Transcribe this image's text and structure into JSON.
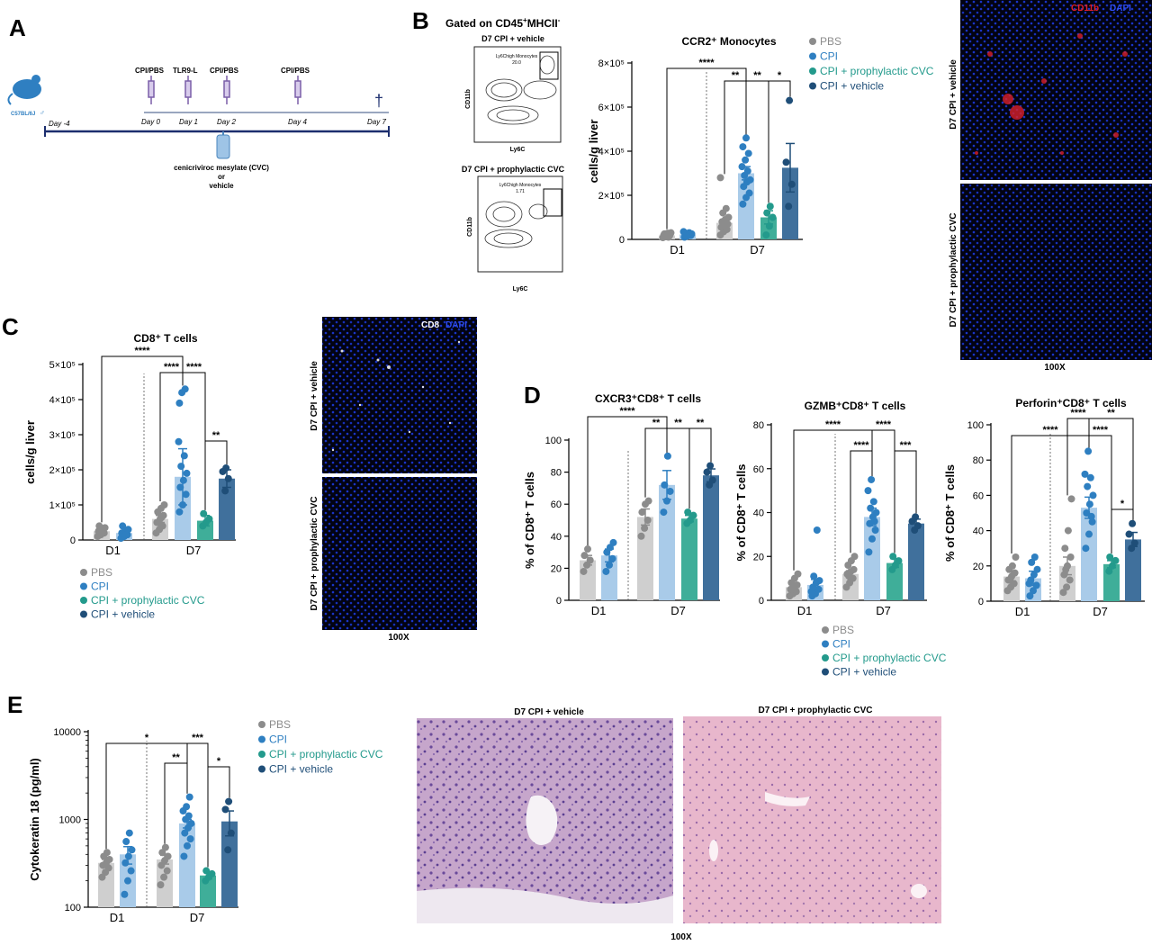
{
  "colors": {
    "pbs": "#8c8c8c",
    "pbs_bar": "#cfcfcf",
    "cpi": "#2e7fc1",
    "cpi_bar": "#a9cbe9",
    "cvc": "#239a8c",
    "cvc_bar": "#3fae99",
    "veh": "#1f4e78",
    "veh_bar": "#40709c",
    "cd11b": "#e0202a",
    "dapi": "#1e3ee6"
  },
  "panel_letters": [
    "A",
    "B",
    "C",
    "D",
    "E"
  ],
  "panel_a": {
    "mouse": "C57BL/6J",
    "sex": "♂",
    "labels_top": [
      "CPI/PBS",
      "TLR9-L",
      "CPI/PBS",
      "CPI/PBS"
    ],
    "days": [
      "Day -4",
      "Day 0",
      "Day 1",
      "Day 2",
      "Day 4",
      "Day 7"
    ],
    "treatment_line1": "cenicriviroc mesylate (CVC)",
    "treatment_line2": "or",
    "treatment_line3": "vehicle",
    "cross": "†"
  },
  "panel_b": {
    "gate_prefix": "Gated on CD45",
    "gate_sup1": "+",
    "gate_mid": "MHCII",
    "gate_sup2": "-",
    "flow1": {
      "title": "D7 CPI + vehicle",
      "gate": "Ly6Chigh Monocytes",
      "value": "20.0",
      "ylabel": "CD11b",
      "xlabel": "Ly6C"
    },
    "flow2": {
      "title": "D7 CPI + prophylactic CVC",
      "gate": "Ly6Chigh Monocytes",
      "value": "1.71",
      "ylabel": "CD11b",
      "xlabel": "Ly6C"
    },
    "micro": {
      "label1": "CD11b",
      "label2": "DAPI",
      "top": "D7 CPI + vehicle",
      "bottom": "D7 CPI + prophylactic CVC",
      "mag": "100X"
    }
  },
  "panel_c": {
    "micro": {
      "label1": "CD8",
      "label2": "DAPI",
      "top": "D7 CPI + vehicle",
      "bottom": "D7 CPI + prophylactic CVC",
      "mag": "100X"
    }
  },
  "panel_e": {
    "img1_title": "D7 CPI + vehicle",
    "img2_title": "D7 CPI + prophylactic CVC",
    "mag": "100X"
  },
  "legend": [
    "PBS",
    "CPI",
    "CPI + prophylactic CVC",
    "CPI + vehicle"
  ],
  "chart_data": [
    {
      "id": "ccr2",
      "type": "bar",
      "title": "CCR2⁺ Monocytes",
      "ylabel": "cells/g liver",
      "ylim": [
        0,
        800000
      ],
      "yticks": [
        0,
        200000,
        400000,
        600000,
        800000
      ],
      "ytick_labels": [
        "0",
        "2×10⁵",
        "4×10⁵",
        "6×10⁵",
        "8×10⁵"
      ],
      "groups": [
        "D1",
        "D7"
      ],
      "series": [
        {
          "name": "PBS",
          "D1": {
            "mean": 18000,
            "err": 4000,
            "points": [
              8000,
              12000,
              15000,
              18000,
              20000,
              22000,
              25000,
              28000,
              30000,
              15000,
              10000
            ]
          },
          "D7": {
            "mean": 75000,
            "err": 15000,
            "points": [
              20000,
              35000,
              45000,
              55000,
              60000,
              70000,
              80000,
              90000,
              100000,
              120000,
              140000,
              280000
            ]
          }
        },
        {
          "name": "CPI",
          "D1": {
            "mean": 22000,
            "err": 4000,
            "points": [
              10000,
              15000,
              18000,
              20000,
              22000,
              25000,
              28000,
              30000,
              35000,
              15000
            ]
          },
          "D7": {
            "mean": 300000,
            "err": 30000,
            "points": [
              160000,
              190000,
              210000,
              240000,
              260000,
              270000,
              290000,
              310000,
              330000,
              360000,
              390000,
              420000,
              460000
            ]
          }
        },
        {
          "name": "CPI + prophylactic CVC",
          "D7": {
            "mean": 100000,
            "err": 30000,
            "points": [
              20000,
              60000,
              100000,
              120000,
              150000
            ]
          }
        },
        {
          "name": "CPI + vehicle",
          "D7": {
            "mean": 325000,
            "err": 110000,
            "points": [
              150000,
              250000,
              350000,
              630000
            ]
          }
        }
      ],
      "sig": [
        "****",
        "**",
        "**",
        "*"
      ]
    },
    {
      "id": "cd8",
      "type": "bar",
      "title": "CD8⁺ T cells",
      "ylabel": "cells/g liver",
      "ylim": [
        0,
        500000
      ],
      "yticks": [
        0,
        100000,
        200000,
        300000,
        400000,
        500000
      ],
      "ytick_labels": [
        "0",
        "1×10⁵",
        "2×10⁵",
        "3×10⁵",
        "4×10⁵",
        "5×10⁵"
      ],
      "groups": [
        "D1",
        "D7"
      ],
      "series": [
        {
          "name": "PBS",
          "D1": {
            "mean": 25000,
            "err": 5000,
            "points": [
              10000,
              15000,
              20000,
              25000,
              30000,
              35000,
              40000,
              20000
            ]
          },
          "D7": {
            "mean": 60000,
            "err": 10000,
            "points": [
              20000,
              30000,
              40000,
              50000,
              60000,
              70000,
              80000,
              90000,
              100000,
              50000,
              65000
            ]
          }
        },
        {
          "name": "CPI",
          "D1": {
            "mean": 20000,
            "err": 5000,
            "points": [
              5000,
              10000,
              15000,
              20000,
              25000,
              30000,
              40000,
              15000
            ]
          },
          "D7": {
            "mean": 180000,
            "err": 80000,
            "points": [
              80000,
              100000,
              130000,
              150000,
              170000,
              190000,
              210000,
              240000,
              280000,
              420000,
              430000,
              390000
            ]
          }
        },
        {
          "name": "CPI + prophylactic CVC",
          "D7": {
            "mean": 55000,
            "err": 15000,
            "points": [
              40000,
              50000,
              60000,
              75000
            ]
          }
        },
        {
          "name": "CPI + vehicle",
          "D7": {
            "mean": 175000,
            "err": 25000,
            "points": [
              140000,
              175000,
              195000,
              205000
            ]
          }
        }
      ],
      "sig": [
        "****",
        "****",
        "****",
        "**"
      ]
    },
    {
      "id": "cxcr3",
      "type": "bar",
      "title": "CXCR3⁺CD8⁺ T cells",
      "ylabel": "% of CD8⁺ T cells",
      "ylim": [
        0,
        100
      ],
      "yticks": [
        0,
        20,
        40,
        60,
        80,
        100
      ],
      "ytick_labels": [
        "0",
        "20",
        "40",
        "60",
        "80",
        "100"
      ],
      "groups": [
        "D1",
        "D7"
      ],
      "series": [
        {
          "name": "PBS",
          "D1": {
            "mean": 25,
            "err": 3,
            "points": [
              18,
              22,
              25,
              28,
              32
            ]
          },
          "D7": {
            "mean": 52,
            "err": 5,
            "points": [
              40,
              45,
              50,
              55,
              60,
              62
            ]
          }
        },
        {
          "name": "CPI",
          "D1": {
            "mean": 28,
            "err": 4,
            "points": [
              18,
              22,
              26,
              30,
              33,
              36
            ]
          },
          "D7": {
            "mean": 72,
            "err": 9,
            "points": [
              55,
              62,
              68,
              72,
              90
            ]
          }
        },
        {
          "name": "CPI + prophylactic CVC",
          "D7": {
            "mean": 51,
            "err": 2,
            "points": [
              48,
              50,
              53,
              55
            ]
          }
        },
        {
          "name": "CPI + vehicle",
          "D7": {
            "mean": 78,
            "err": 4,
            "points": [
              72,
              75,
              80,
              84
            ]
          }
        }
      ],
      "sig": [
        "****",
        "**",
        "**",
        "**"
      ]
    },
    {
      "id": "gzmb",
      "type": "bar",
      "title": "GZMB⁺CD8⁺ T cells",
      "ylabel": "% of CD8⁺ T cells",
      "ylim": [
        0,
        80
      ],
      "yticks": [
        0,
        20,
        40,
        60,
        80
      ],
      "ytick_labels": [
        "0",
        "20",
        "40",
        "60",
        "80"
      ],
      "groups": [
        "D1",
        "D7"
      ],
      "series": [
        {
          "name": "PBS",
          "D1": {
            "mean": 6,
            "err": 1.5,
            "points": [
              2,
              3,
              4,
              5,
              6,
              7,
              8,
              10,
              12,
              5
            ]
          },
          "D7": {
            "mean": 12,
            "err": 1.5,
            "points": [
              6,
              8,
              10,
              12,
              13,
              14,
              16,
              18,
              20,
              11
            ]
          }
        },
        {
          "name": "CPI",
          "D1": {
            "mean": 7,
            "err": 2.5,
            "points": [
              2,
              3,
              5,
              6,
              8,
              9,
              11,
              32,
              4
            ]
          },
          "D7": {
            "mean": 38,
            "err": 4,
            "points": [
              22,
              28,
              32,
              35,
              38,
              40,
              42,
              45,
              50,
              55,
              36
            ]
          }
        },
        {
          "name": "CPI + prophylactic CVC",
          "D7": {
            "mean": 17,
            "err": 2,
            "points": [
              14,
              16,
              18,
              20
            ]
          }
        },
        {
          "name": "CPI + vehicle",
          "D7": {
            "mean": 35,
            "err": 2,
            "points": [
              32,
              34,
              36,
              38
            ]
          }
        }
      ],
      "sig": [
        "****",
        "****",
        "****",
        "***"
      ]
    },
    {
      "id": "perforin",
      "type": "bar",
      "title": "Perforin⁺CD8⁺ T cells",
      "ylabel": "% of CD8⁺ T cells",
      "ylim": [
        0,
        100
      ],
      "yticks": [
        0,
        20,
        40,
        60,
        80,
        100
      ],
      "ytick_labels": [
        "0",
        "20",
        "40",
        "60",
        "80",
        "100"
      ],
      "groups": [
        "D1",
        "D7"
      ],
      "series": [
        {
          "name": "PBS",
          "D1": {
            "mean": 14,
            "err": 2.5,
            "points": [
              6,
              8,
              10,
              12,
              14,
              16,
              18,
              20,
              25,
              12
            ]
          },
          "D7": {
            "mean": 20,
            "err": 5,
            "points": [
              5,
              8,
              12,
              15,
              20,
              25,
              30,
              40,
              58,
              18
            ]
          }
        },
        {
          "name": "CPI",
          "D1": {
            "mean": 13,
            "err": 4,
            "points": [
              3,
              6,
              9,
              12,
              15,
              18,
              22,
              25,
              10
            ]
          },
          "D7": {
            "mean": 53,
            "err": 6,
            "points": [
              30,
              38,
              45,
              50,
              55,
              60,
              65,
              70,
              72,
              85,
              48
            ]
          }
        },
        {
          "name": "CPI + prophylactic CVC",
          "D7": {
            "mean": 21,
            "err": 2,
            "points": [
              17,
              20,
              23,
              25
            ]
          }
        },
        {
          "name": "CPI + vehicle",
          "D7": {
            "mean": 35,
            "err": 4,
            "points": [
              30,
              33,
              38,
              44
            ]
          }
        }
      ],
      "sig": [
        "****",
        "****",
        "****",
        "**",
        "*"
      ]
    },
    {
      "id": "ck18",
      "type": "bar",
      "title": "",
      "ylabel": "Cytokeratin 18 (pg/ml)",
      "log": true,
      "ylim": [
        100,
        10000
      ],
      "yticks": [
        100,
        1000,
        10000
      ],
      "ytick_labels": [
        "100",
        "1000",
        "10000"
      ],
      "groups": [
        "D1",
        "D7"
      ],
      "series": [
        {
          "name": "PBS",
          "D1": {
            "mean": 320,
            "err": 30,
            "points": [
              220,
              250,
              280,
              300,
              320,
              350,
              380,
              420
            ]
          },
          "D7": {
            "mean": 350,
            "err": 40,
            "points": [
              180,
              220,
              260,
              300,
              340,
              380,
              420,
              480
            ]
          }
        },
        {
          "name": "CPI",
          "D1": {
            "mean": 400,
            "err": 90,
            "points": [
              140,
              200,
              260,
              320,
              380,
              450,
              560,
              700
            ]
          },
          "D7": {
            "mean": 900,
            "err": 100,
            "points": [
              380,
              500,
              600,
              700,
              800,
              900,
              1000,
              1100,
              1250,
              1400,
              1800
            ]
          }
        },
        {
          "name": "CPI + prophylactic CVC",
          "D7": {
            "mean": 230,
            "err": 20,
            "points": [
              200,
              220,
              240,
              260
            ]
          }
        },
        {
          "name": "CPI + vehicle",
          "D7": {
            "mean": 950,
            "err": 300,
            "points": [
              450,
              700,
              1300,
              1600
            ]
          }
        }
      ],
      "sig": [
        "*",
        "***",
        "**",
        "*"
      ]
    }
  ]
}
